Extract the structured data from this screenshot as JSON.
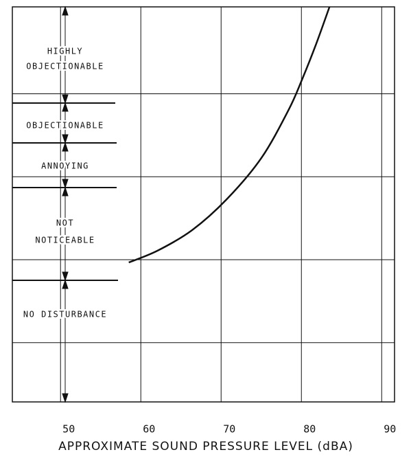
{
  "chart_data": {
    "type": "line",
    "xlabel": "APPROXIMATE  SOUND  PRESSURE  LEVEL  (dBA)",
    "xlim": [
      44,
      91.6
    ],
    "xticks": [
      50,
      60,
      70,
      80,
      90
    ],
    "ylim": [
      0,
      100
    ],
    "yticks": [
      15,
      36,
      57,
      78
    ],
    "grid": true,
    "series": [
      {
        "color": "#111111",
        "x": [
          58.5,
          62.1,
          66.4,
          70.7,
          75.0,
          78.4,
          80.1,
          81.8,
          83.5
        ],
        "values": [
          35.3,
          38.3,
          43.5,
          51.3,
          61.7,
          73.9,
          81.7,
          90.4,
          100
        ]
      }
    ],
    "annotations": [
      {
        "lines": [
          "HIGHLY",
          "OBJECTIONABLE"
        ]
      },
      {
        "lines": [
          "OBJECTIONABLE"
        ]
      },
      {
        "lines": [
          "ANNOYING"
        ]
      },
      {
        "lines": [
          "NOT",
          "NOTICEABLE"
        ]
      },
      {
        "lines": [
          "NO DISTURBANCE"
        ]
      }
    ]
  }
}
